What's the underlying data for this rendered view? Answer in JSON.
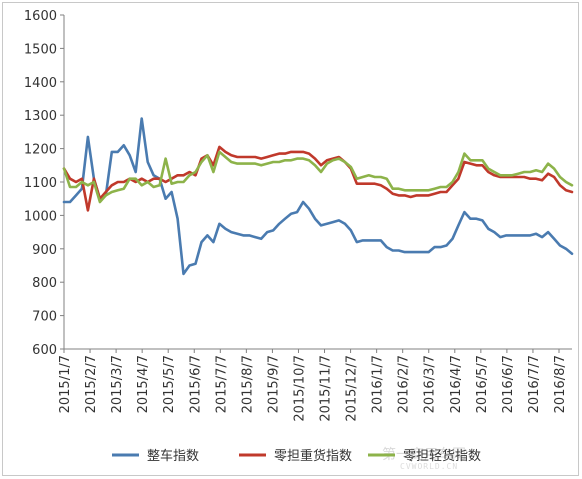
{
  "chart_data": {
    "type": "line",
    "title": "",
    "xlabel": "",
    "ylabel": "",
    "ylim": [
      600,
      1600
    ],
    "yticks": [
      600,
      700,
      800,
      900,
      1000,
      1100,
      1200,
      1300,
      1400,
      1500,
      1600
    ],
    "grid": false,
    "legend_position": "bottom",
    "x_tick_labels": [
      "2015/1/7",
      "2015/2/7",
      "2015/3/7",
      "2015/4/7",
      "2015/5/7",
      "2015/6/7",
      "2015/7/7",
      "2015/8/7",
      "2015/9/7",
      "2015/10/7",
      "2015/11/7",
      "2015/12/7",
      "2016/1/7",
      "2016/2/7",
      "2016/3/7",
      "2016/4/7",
      "2016/5/7",
      "2016/6/7",
      "2016/7/7",
      "2016/8/7"
    ],
    "series": [
      {
        "name": "整车指数",
        "color": "#4a7bb0",
        "values": [
          1040,
          1040,
          1060,
          1080,
          1235,
          1110,
          1050,
          1060,
          1190,
          1190,
          1210,
          1180,
          1130,
          1290,
          1160,
          1120,
          1110,
          1050,
          1070,
          990,
          825,
          850,
          855,
          920,
          940,
          920,
          975,
          960,
          950,
          945,
          940,
          940,
          935,
          930,
          950,
          955,
          975,
          990,
          1005,
          1010,
          1040,
          1020,
          990,
          970,
          975,
          980,
          985,
          975,
          955,
          920,
          925,
          925,
          925,
          925,
          905,
          895,
          895,
          890,
          890,
          890,
          890,
          890,
          905,
          905,
          910,
          930,
          970,
          1010,
          990,
          990,
          985,
          960,
          950,
          935,
          940,
          940,
          940,
          940,
          940,
          945,
          935,
          950,
          930,
          910,
          900,
          885
        ]
      },
      {
        "name": "零担重货指数",
        "color": "#c0392b",
        "values": [
          1140,
          1110,
          1100,
          1110,
          1015,
          1110,
          1050,
          1070,
          1090,
          1100,
          1100,
          1110,
          1100,
          1110,
          1100,
          1110,
          1110,
          1100,
          1110,
          1120,
          1120,
          1130,
          1120,
          1170,
          1180,
          1150,
          1205,
          1190,
          1180,
          1175,
          1175,
          1175,
          1175,
          1170,
          1175,
          1180,
          1185,
          1185,
          1190,
          1190,
          1190,
          1185,
          1170,
          1150,
          1165,
          1170,
          1175,
          1160,
          1140,
          1095,
          1095,
          1095,
          1095,
          1090,
          1080,
          1065,
          1060,
          1060,
          1055,
          1060,
          1060,
          1060,
          1065,
          1070,
          1070,
          1090,
          1110,
          1160,
          1155,
          1150,
          1150,
          1130,
          1120,
          1115,
          1115,
          1115,
          1115,
          1115,
          1110,
          1110,
          1105,
          1125,
          1115,
          1090,
          1075,
          1070
        ]
      },
      {
        "name": "零担轻货指数",
        "color": "#8db34a",
        "values": [
          1140,
          1085,
          1085,
          1100,
          1090,
          1100,
          1040,
          1060,
          1070,
          1075,
          1080,
          1110,
          1110,
          1090,
          1100,
          1085,
          1090,
          1170,
          1095,
          1100,
          1100,
          1120,
          1130,
          1160,
          1180,
          1130,
          1190,
          1175,
          1160,
          1155,
          1155,
          1155,
          1155,
          1150,
          1155,
          1160,
          1160,
          1165,
          1165,
          1170,
          1170,
          1165,
          1150,
          1130,
          1155,
          1165,
          1170,
          1160,
          1145,
          1110,
          1115,
          1120,
          1115,
          1115,
          1110,
          1080,
          1080,
          1075,
          1075,
          1075,
          1075,
          1075,
          1080,
          1085,
          1085,
          1100,
          1130,
          1185,
          1165,
          1165,
          1165,
          1140,
          1130,
          1120,
          1120,
          1120,
          1125,
          1130,
          1130,
          1135,
          1130,
          1155,
          1140,
          1115,
          1100,
          1090
        ]
      }
    ]
  },
  "watermark": {
    "text": "第一商用车网",
    "sub": "CVWORLD.CN"
  }
}
